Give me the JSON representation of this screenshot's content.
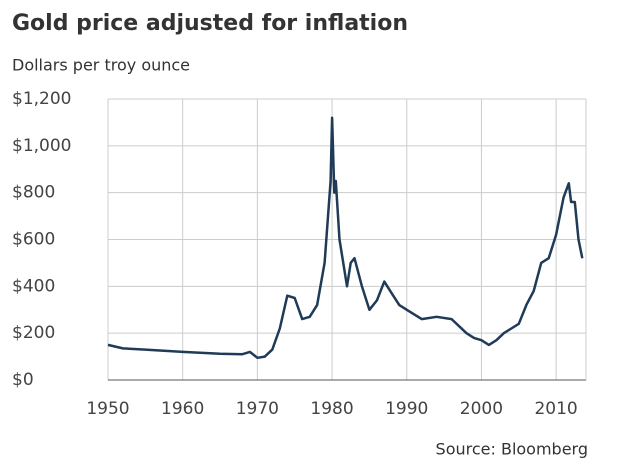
{
  "chart_data": {
    "type": "line",
    "title": "Gold price adjusted for inflation",
    "subtitle": "Dollars per troy ounce",
    "source": "Source: Bloomberg",
    "x": [
      1950,
      1952,
      1955,
      1960,
      1965,
      1968,
      1969,
      1970,
      1971,
      1972,
      1973,
      1974,
      1975,
      1976,
      1977,
      1978,
      1979,
      1979.8,
      1980.0,
      1980.3,
      1980.5,
      1981,
      1982,
      1982.5,
      1983,
      1984,
      1985,
      1986,
      1987,
      1988,
      1989,
      1990,
      1992,
      1994,
      1996,
      1998,
      1999,
      2000,
      2001,
      2002,
      2003,
      2004,
      2005,
      2006,
      2007,
      2008,
      2009,
      2010,
      2011,
      2011.7,
      2012,
      2012.5,
      2013,
      2013.5
    ],
    "series": [
      {
        "name": "Gold price",
        "color": "#1f3b57",
        "values": [
          150,
          135,
          130,
          120,
          112,
          110,
          120,
          95,
          100,
          130,
          220,
          360,
          350,
          260,
          270,
          320,
          500,
          850,
          1120,
          800,
          850,
          600,
          400,
          500,
          520,
          400,
          300,
          340,
          420,
          370,
          320,
          300,
          260,
          270,
          260,
          200,
          180,
          170,
          150,
          170,
          200,
          220,
          240,
          320,
          380,
          500,
          520,
          620,
          780,
          840,
          760,
          760,
          600,
          520
        ]
      }
    ],
    "xlim": [
      1950,
      2014
    ],
    "xticks": [
      1950,
      1960,
      1970,
      1980,
      1990,
      2000,
      2010
    ],
    "ylim": [
      0,
      1200
    ],
    "yticks": [
      {
        "value": 0,
        "label": "$0"
      },
      {
        "value": 200,
        "label": "$200"
      },
      {
        "value": 400,
        "label": "$400"
      },
      {
        "value": 600,
        "label": "$600"
      },
      {
        "value": 800,
        "label": "$800"
      },
      {
        "value": 1000,
        "label": "$1,000"
      },
      {
        "value": 1200,
        "label": "$1,200"
      }
    ],
    "grid": true
  }
}
